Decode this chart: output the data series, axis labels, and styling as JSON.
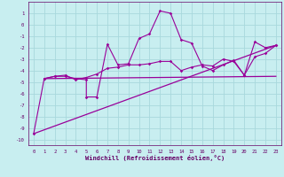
{
  "background_color": "#c8eef0",
  "grid_color": "#a8d8dc",
  "line_color": "#990099",
  "xlabel": "Windchill (Refroidissement éolien,°C)",
  "xlim": [
    -0.5,
    23.5
  ],
  "ylim": [
    -10.5,
    2.0
  ],
  "yticks": [
    1,
    0,
    -1,
    -2,
    -3,
    -4,
    -5,
    -6,
    -7,
    -8,
    -9,
    -10
  ],
  "xticks": [
    0,
    1,
    2,
    3,
    4,
    5,
    6,
    7,
    8,
    9,
    10,
    11,
    12,
    13,
    14,
    15,
    16,
    17,
    18,
    19,
    20,
    21,
    22,
    23
  ],
  "series1_x": [
    0,
    1,
    2,
    3,
    4,
    5,
    5,
    6,
    7,
    8,
    9,
    10,
    11,
    12,
    13,
    14,
    15,
    16,
    17,
    18,
    19,
    20,
    21,
    22,
    23
  ],
  "series1_y": [
    -9.5,
    -4.7,
    -4.5,
    -4.5,
    -4.7,
    -4.8,
    -6.3,
    -6.3,
    -1.7,
    -3.5,
    -3.4,
    -1.2,
    -0.8,
    1.2,
    1.0,
    -1.3,
    -1.6,
    -3.6,
    -4.0,
    -3.5,
    -3.1,
    -4.4,
    -1.5,
    -2.0,
    -1.8
  ],
  "series2_x": [
    1,
    2,
    3,
    4,
    5,
    6,
    7,
    8,
    9,
    10,
    11,
    12,
    13,
    14,
    15,
    16,
    17,
    18,
    19,
    20,
    21,
    22,
    23
  ],
  "series2_y": [
    -4.7,
    -4.5,
    -4.4,
    -4.8,
    -4.6,
    -4.3,
    -3.8,
    -3.7,
    -3.5,
    -3.5,
    -3.4,
    -3.2,
    -3.2,
    -4.0,
    -3.7,
    -3.5,
    -3.6,
    -3.0,
    -3.2,
    -4.4,
    -2.8,
    -2.5,
    -1.8
  ],
  "series3_x": [
    0,
    23
  ],
  "series3_y": [
    -9.5,
    -1.8
  ],
  "series4_x": [
    1,
    23
  ],
  "series4_y": [
    -4.7,
    -4.5
  ]
}
